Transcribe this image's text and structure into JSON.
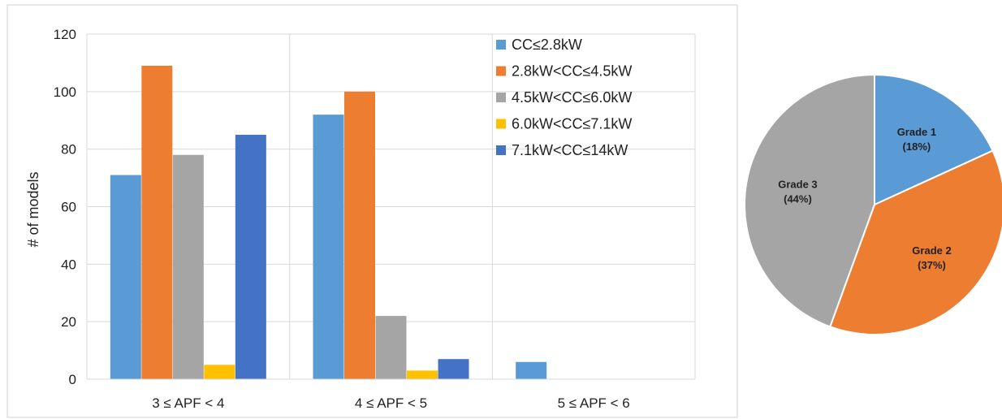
{
  "chart_data": [
    {
      "type": "bar",
      "title": "",
      "xlabel": "",
      "ylabel": "# of models",
      "ylim": [
        0,
        120
      ],
      "yticks": [
        0,
        20,
        40,
        60,
        80,
        100,
        120
      ],
      "grid": true,
      "legend_placement": "top-right",
      "categories": [
        "3 ≤ APF < 4",
        "4 ≤ APF < 5",
        "5 ≤ APF < 6"
      ],
      "series": [
        {
          "name": "CC≤2.8kW",
          "color": "#5b9bd5",
          "values": [
            71,
            92,
            6
          ]
        },
        {
          "name": "2.8kW<CC≤4.5kW",
          "color": "#ed7d31",
          "values": [
            109,
            100,
            0
          ]
        },
        {
          "name": "4.5kW<CC≤6.0kW",
          "color": "#a5a5a5",
          "values": [
            78,
            22,
            0
          ]
        },
        {
          "name": "6.0kW<CC≤7.1kW",
          "color": "#ffc000",
          "values": [
            5,
            3,
            0
          ]
        },
        {
          "name": "7.1kW<CC≤14kW",
          "color": "#4472c4",
          "values": [
            85,
            7,
            0
          ]
        }
      ]
    },
    {
      "type": "pie",
      "title": "",
      "slices": [
        {
          "label": "Grade 1",
          "pct_label": "(18%)",
          "value": 18,
          "color": "#5b9bd5"
        },
        {
          "label": "Grade 2",
          "pct_label": "(37%)",
          "value": 37,
          "color": "#ed7d31"
        },
        {
          "label": "Grade 3",
          "pct_label": "(44%)",
          "value": 44,
          "color": "#a5a5a5"
        }
      ]
    }
  ]
}
